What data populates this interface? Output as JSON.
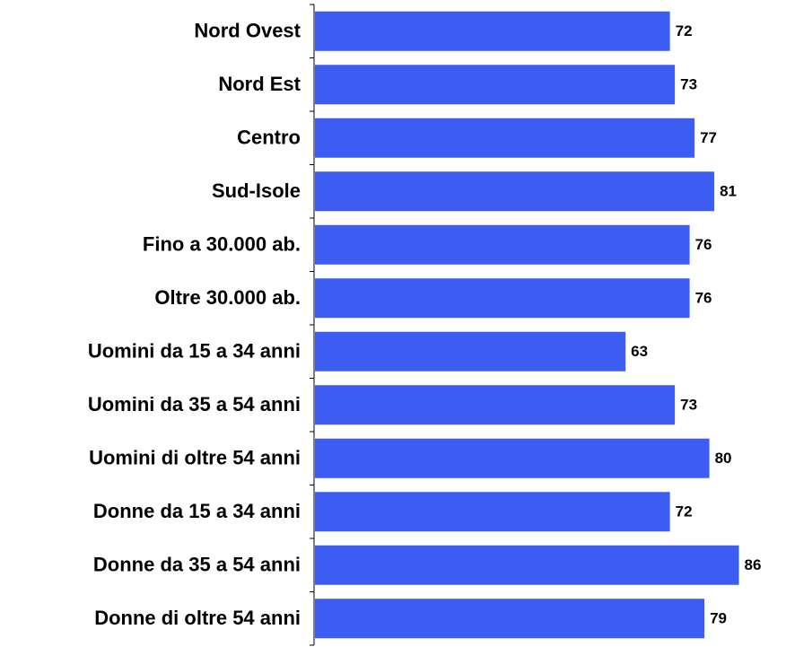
{
  "chart_data": {
    "type": "bar",
    "orientation": "horizontal",
    "categories": [
      "Nord Ovest",
      "Nord Est",
      "Centro",
      "Sud-Isole",
      "Fino a 30.000 ab.",
      "Oltre 30.000 ab.",
      "Uomini da 15 a 34 anni",
      "Uomini da 35 a 54 anni",
      "Uomini di oltre 54 anni",
      "Donne da 15 a 34 anni",
      "Donne da 35 a 54 anni",
      "Donne di oltre 54 anni"
    ],
    "values": [
      72,
      73,
      77,
      81,
      76,
      76,
      63,
      73,
      80,
      72,
      86,
      79
    ],
    "color": "#3d5cf2",
    "xlim": [
      0,
      95
    ]
  }
}
